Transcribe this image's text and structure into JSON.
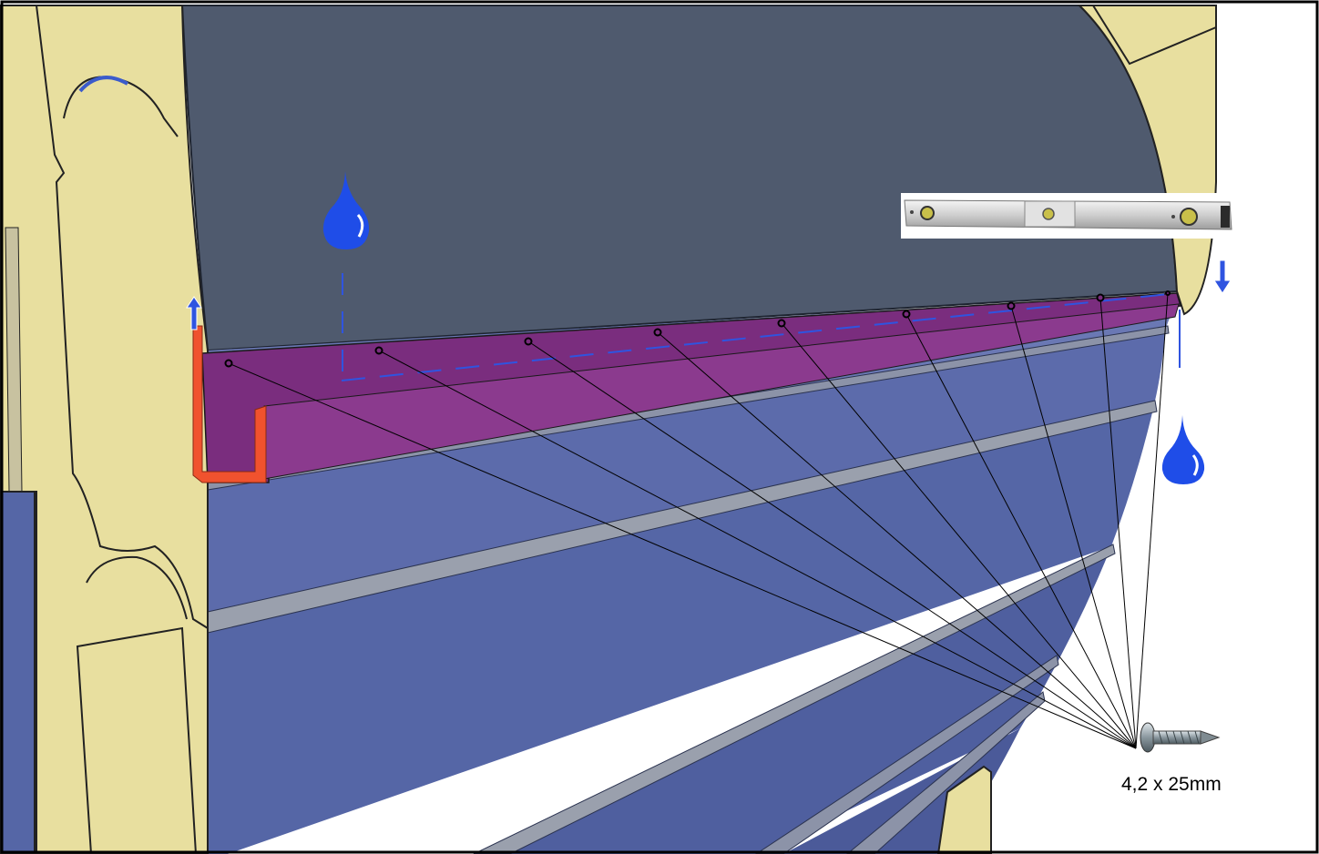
{
  "annotations": {
    "screw_label": "4,2 x 25mm"
  },
  "icons": {
    "water_drop_left": "water-drop-icon",
    "water_drop_right": "water-drop-icon",
    "arrow_up": "arrow-up-icon",
    "arrow_down": "arrow-down-icon",
    "spirit_level": "spirit-level-icon",
    "screw": "screw-icon"
  },
  "colors": {
    "frame_yellow": "#e8df9f",
    "wall_dark": "#4f5a6e",
    "panel_blue": "#5667a6",
    "gutter_purple": "#7a2d7e",
    "gutter_end_orange": "#f0522e",
    "water_blue": "#1f4de8",
    "guide_blue": "#2f54e0"
  },
  "screw_count": 9
}
